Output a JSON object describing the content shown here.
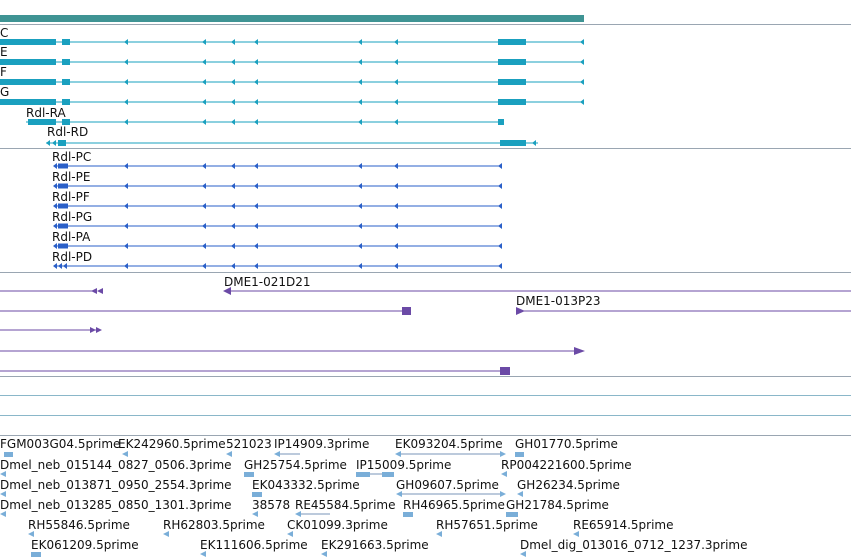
{
  "colors": {
    "track_bar": "#3f9494",
    "gene_a": "#1aa0bf",
    "gene_b": "#2a5fc8",
    "clone": "#6b4aa6",
    "est": "#7aaed8",
    "est_line": "#7a96b8",
    "divider": "#9aa6b2",
    "empty_track": "#8ab7c9"
  },
  "transcripts_group_a": [
    {
      "label": "C",
      "has_right_arrow": false
    },
    {
      "label": "E",
      "has_right_arrow": false
    },
    {
      "label": "F",
      "has_right_arrow": false
    },
    {
      "label": "G",
      "has_right_arrow": false
    },
    {
      "label": "Rdl-RA",
      "has_right_arrow": false
    },
    {
      "label": "Rdl-RD",
      "has_right_arrow": true
    }
  ],
  "transcripts_group_b": [
    {
      "label": "Rdl-PC"
    },
    {
      "label": "Rdl-PE"
    },
    {
      "label": "Rdl-PF"
    },
    {
      "label": "Rdl-PG"
    },
    {
      "label": "Rdl-PA"
    },
    {
      "label": "Rdl-PD"
    }
  ],
  "clones": [
    {
      "label": "DME1-021D21",
      "direction": "left"
    },
    {
      "label": "DME1-013P23",
      "direction": "right"
    }
  ],
  "est_rows": [
    [
      "FGM003G04.5prime",
      "EK242960.5prime",
      "521023",
      "IP14909.3prime",
      "EK093204.5prime",
      "GH01770.5prime"
    ],
    [
      "Dmel_neb_015144_0827_0506.3prime",
      "GH25754.5prime",
      "IP15009.5prime",
      "RP004221600.5prime"
    ],
    [
      "Dmel_neb_013871_0950_2554.3prime",
      "EK043332.5prime",
      "GH09607.5prime",
      "GH26234.5prime"
    ],
    [
      "Dmel_neb_013285_0850_1301.3prime",
      "38578",
      "RE45584.5prime",
      "RH46965.5prime",
      "GH21784.5prime"
    ],
    [
      "RH55846.5prime",
      "RH62803.5prime",
      "CK01099.3prime",
      "RH57651.5prime",
      "RE65914.5prime"
    ],
    [
      "EK061209.5prime",
      "EK111606.5prime",
      "EK291663.5prime",
      "Dmel_dig_013016_0712_1237.3prime"
    ]
  ]
}
